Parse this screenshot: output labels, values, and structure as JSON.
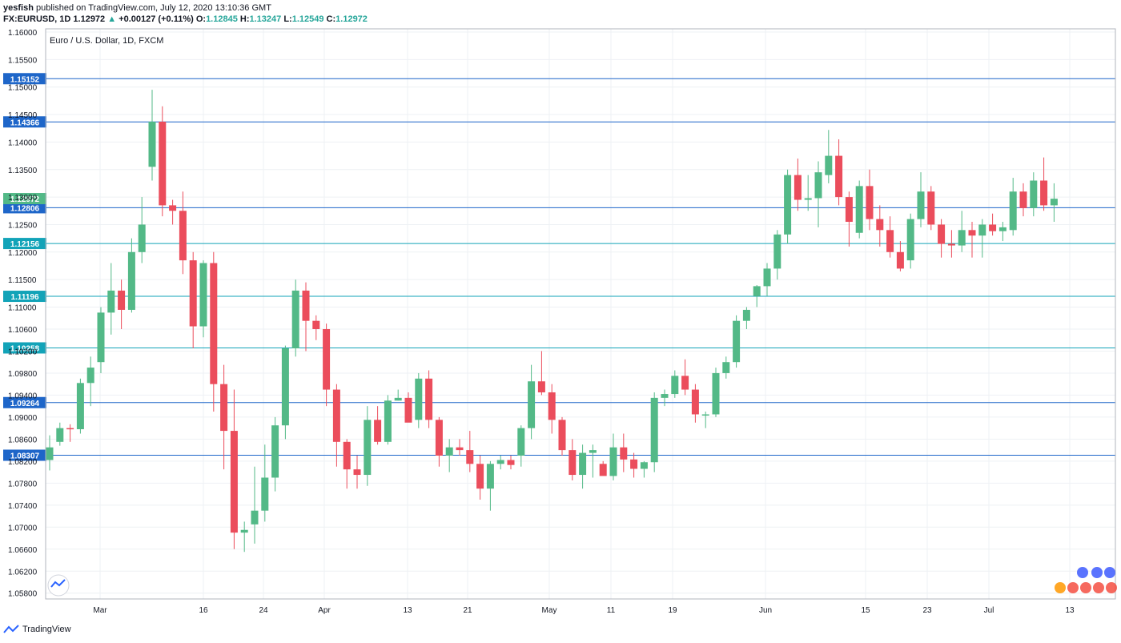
{
  "header": {
    "user": "yesfish",
    "published": "published on TradingView.com, July 12, 2020 13:10:36 GMT",
    "symbol": "FX:EURUSD, 1D",
    "last": "1.12972",
    "arrow": "▲",
    "change": "+0.00127 (+0.11%)",
    "o_label": "O:",
    "o": "1.12845",
    "h_label": "H:",
    "h": "1.13247",
    "l_label": "L:",
    "l": "1.12549",
    "c_label": "C:",
    "c": "1.12972"
  },
  "footer": {
    "brand": "TradingView",
    "logo_icon": "tradingview-logo-icon"
  },
  "colors": {
    "up": "#53b987",
    "down": "#eb4d5c",
    "hline_dark": "#1e66c9",
    "hline_cyan": "#12a3b8",
    "grid": "#eef1f4",
    "price_badge": "#53b987"
  },
  "chart_data": {
    "type": "candlestick",
    "title": "Euro / U.S. Dollar, 1D, FXCM",
    "ylim": [
      1.056,
      1.161
    ],
    "y_ticks": [
      "1.16000",
      "1.15500",
      "1.15000",
      "1.14500",
      "1.14000",
      "1.13500",
      "1.13000",
      "1.12500",
      "1.12000",
      "1.11500",
      "1.11000",
      "1.10600",
      "1.10200",
      "1.09800",
      "1.09400",
      "1.09000",
      "1.08600",
      "1.08200",
      "1.07800",
      "1.07400",
      "1.07000",
      "1.06600",
      "1.06200",
      "1.05800"
    ],
    "x_labels": [
      "Mar",
      "16",
      "24",
      "Apr",
      "13",
      "21",
      "May",
      "11",
      "19",
      "Jun",
      "15",
      "23",
      "Jul",
      "13"
    ],
    "horizontal_levels": [
      {
        "label": "1.15152",
        "style": "dark"
      },
      {
        "label": "1.14366",
        "style": "dark"
      },
      {
        "label": "1.12806",
        "style": "dark"
      },
      {
        "label": "1.12156",
        "style": "cyan"
      },
      {
        "label": "1.11196",
        "style": "cyan"
      },
      {
        "label": "1.10258",
        "style": "cyan"
      },
      {
        "label": "1.09264",
        "style": "dark"
      },
      {
        "label": "1.08307",
        "style": "dark"
      }
    ],
    "last_price_label": "1.12972",
    "candles": [
      [
        1.0822,
        1.0867,
        1.0803,
        1.0845
      ],
      [
        1.0855,
        1.089,
        1.0848,
        1.088
      ],
      [
        1.088,
        1.0887,
        1.0855,
        1.0878
      ],
      [
        1.0878,
        1.097,
        1.087,
        1.0962
      ],
      [
        1.0962,
        1.101,
        1.092,
        1.099
      ],
      [
        1.1,
        1.11,
        1.098,
        1.109
      ],
      [
        1.109,
        1.118,
        1.105,
        1.113
      ],
      [
        1.113,
        1.115,
        1.106,
        1.1095
      ],
      [
        1.1095,
        1.1225,
        1.109,
        1.12
      ],
      [
        1.12,
        1.13,
        1.118,
        1.125
      ],
      [
        1.1355,
        1.1495,
        1.133,
        1.1437
      ],
      [
        1.1437,
        1.1465,
        1.1265,
        1.1285
      ],
      [
        1.1285,
        1.1295,
        1.125,
        1.1275
      ],
      [
        1.1275,
        1.131,
        1.116,
        1.1185
      ],
      [
        1.1185,
        1.12,
        1.1025,
        1.1065
      ],
      [
        1.1065,
        1.1185,
        1.1045,
        1.118
      ],
      [
        1.118,
        1.12,
        1.091,
        1.096
      ],
      [
        1.096,
        1.0995,
        1.0805,
        1.0875
      ],
      [
        1.0875,
        1.095,
        1.066,
        1.069
      ],
      [
        1.069,
        1.071,
        1.0655,
        1.0695
      ],
      [
        1.0705,
        1.081,
        1.067,
        1.073
      ],
      [
        1.073,
        1.085,
        1.071,
        1.079
      ],
      [
        1.079,
        1.09,
        1.0765,
        1.0885
      ],
      [
        1.0885,
        1.103,
        1.086,
        1.1025
      ],
      [
        1.1025,
        1.115,
        1.101,
        1.113
      ],
      [
        1.113,
        1.1145,
        1.102,
        1.1075
      ],
      [
        1.1075,
        1.1085,
        1.104,
        1.106
      ],
      [
        1.106,
        1.107,
        1.092,
        1.095
      ],
      [
        1.095,
        1.096,
        1.081,
        1.0855
      ],
      [
        1.0855,
        1.086,
        1.077,
        1.0805
      ],
      [
        1.0805,
        1.083,
        1.077,
        1.0795
      ],
      [
        1.0795,
        1.092,
        1.0775,
        1.0895
      ],
      [
        1.0895,
        1.092,
        1.085,
        1.0855
      ],
      [
        1.0855,
        1.094,
        1.085,
        1.093
      ],
      [
        1.093,
        1.095,
        1.093,
        1.0935
      ],
      [
        1.0935,
        1.0945,
        1.0895,
        1.089
      ],
      [
        1.0895,
        1.098,
        1.088,
        1.097
      ],
      [
        1.097,
        1.0985,
        1.088,
        1.0895
      ],
      [
        1.0895,
        1.09,
        1.081,
        1.083
      ],
      [
        1.083,
        1.086,
        1.08,
        1.0845
      ],
      [
        1.0845,
        1.086,
        1.083,
        1.084
      ],
      [
        1.084,
        1.0875,
        1.08,
        1.0815
      ],
      [
        1.0815,
        1.083,
        1.075,
        1.077
      ],
      [
        1.077,
        1.082,
        1.073,
        1.0815
      ],
      [
        1.0815,
        1.083,
        1.0805,
        1.0822
      ],
      [
        1.0822,
        1.083,
        1.0805,
        1.0813
      ],
      [
        1.083,
        1.0885,
        1.081,
        1.088
      ],
      [
        1.088,
        1.0995,
        1.086,
        1.0965
      ],
      [
        1.0965,
        1.102,
        1.094,
        1.0945
      ],
      [
        1.0945,
        1.096,
        1.087,
        1.0895
      ],
      [
        1.0895,
        1.09,
        1.083,
        1.084
      ],
      [
        1.084,
        1.086,
        1.0785,
        1.0795
      ],
      [
        1.0795,
        1.085,
        1.077,
        1.0835
      ],
      [
        1.0835,
        1.085,
        1.079,
        1.084
      ],
      [
        1.0815,
        1.082,
        1.0795,
        1.0793
      ],
      [
        1.0793,
        1.087,
        1.0785,
        1.0845
      ],
      [
        1.0845,
        1.087,
        1.08,
        1.0823
      ],
      [
        1.0823,
        1.0835,
        1.079,
        1.0806
      ],
      [
        1.0806,
        1.082,
        1.079,
        1.0818
      ],
      [
        1.0818,
        1.0945,
        1.08,
        1.0935
      ],
      [
        1.0935,
        1.095,
        1.092,
        1.0942
      ],
      [
        1.0942,
        1.0985,
        1.0935,
        1.0975
      ],
      [
        1.0975,
        1.1005,
        1.094,
        1.095
      ],
      [
        1.095,
        1.096,
        1.089,
        1.0905
      ],
      [
        1.0905,
        1.091,
        1.088,
        1.0905
      ],
      [
        1.0905,
        1.099,
        1.09,
        1.098
      ],
      [
        1.098,
        1.101,
        1.097,
        1.1
      ],
      [
        1.1,
        1.1085,
        1.099,
        1.1075
      ],
      [
        1.1075,
        1.11,
        1.106,
        1.1095
      ],
      [
        1.112,
        1.114,
        1.11,
        1.1138
      ],
      [
        1.1138,
        1.118,
        1.112,
        1.117
      ],
      [
        1.117,
        1.124,
        1.115,
        1.1232
      ],
      [
        1.1232,
        1.135,
        1.1215,
        1.134
      ],
      [
        1.134,
        1.137,
        1.1275,
        1.1295
      ],
      [
        1.1295,
        1.134,
        1.1275,
        1.1298
      ],
      [
        1.1298,
        1.1365,
        1.1245,
        1.1345
      ],
      [
        1.134,
        1.1422,
        1.1325,
        1.1375
      ],
      [
        1.1375,
        1.1405,
        1.1285,
        1.13
      ],
      [
        1.13,
        1.131,
        1.121,
        1.1255
      ],
      [
        1.1235,
        1.133,
        1.1225,
        1.132
      ],
      [
        1.132,
        1.135,
        1.124,
        1.126
      ],
      [
        1.126,
        1.1285,
        1.121,
        1.124
      ],
      [
        1.124,
        1.1265,
        1.119,
        1.12
      ],
      [
        1.12,
        1.122,
        1.1165,
        1.117
      ],
      [
        1.1185,
        1.127,
        1.117,
        1.126
      ],
      [
        1.126,
        1.1345,
        1.1245,
        1.131
      ],
      [
        1.131,
        1.132,
        1.124,
        1.125
      ],
      [
        1.125,
        1.126,
        1.119,
        1.1215
      ],
      [
        1.1215,
        1.124,
        1.119,
        1.1212
      ],
      [
        1.1212,
        1.1275,
        1.12,
        1.124
      ],
      [
        1.124,
        1.1255,
        1.119,
        1.123
      ],
      [
        1.123,
        1.126,
        1.119,
        1.125
      ],
      [
        1.125,
        1.127,
        1.123,
        1.1238
      ],
      [
        1.1238,
        1.1255,
        1.122,
        1.1245
      ],
      [
        1.124,
        1.1335,
        1.123,
        1.131
      ],
      [
        1.131,
        1.1325,
        1.1265,
        1.128
      ],
      [
        1.128,
        1.1345,
        1.1265,
        1.133
      ],
      [
        1.133,
        1.1372,
        1.1275,
        1.1285
      ],
      [
        1.1285,
        1.1325,
        1.1255,
        1.1297
      ]
    ]
  }
}
